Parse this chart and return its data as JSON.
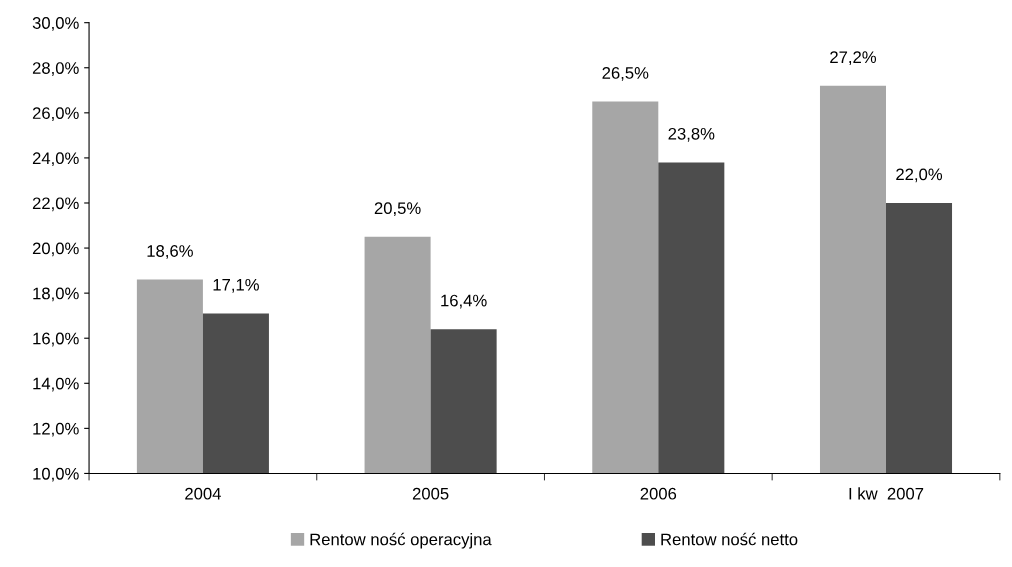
{
  "chart_data": {
    "type": "bar",
    "categories": [
      "2004",
      "2005",
      "2006",
      "I kw  2007"
    ],
    "series": [
      {
        "name": "Rentow ność operacyjna",
        "color": "#a6a6a6",
        "values": [
          18.6,
          20.5,
          26.5,
          27.2
        ],
        "value_labels": [
          "18,6%",
          "20,5%",
          "26,5%",
          "27,2%"
        ]
      },
      {
        "name": "Rentow ność netto",
        "color": "#4d4d4d",
        "values": [
          17.1,
          16.4,
          23.8,
          22.0
        ],
        "value_labels": [
          "17,1%",
          "16,4%",
          "23,8%",
          "22,0%"
        ]
      }
    ],
    "ylim": [
      10,
      30
    ],
    "yticks": [
      {
        "value": 10,
        "label": "10,0%"
      },
      {
        "value": 12,
        "label": "12,0%"
      },
      {
        "value": 14,
        "label": "14,0%"
      },
      {
        "value": 16,
        "label": "16,0%"
      },
      {
        "value": 18,
        "label": "18,0%"
      },
      {
        "value": 20,
        "label": "20,0%"
      },
      {
        "value": 22,
        "label": "22,0%"
      },
      {
        "value": 24,
        "label": "24,0%"
      },
      {
        "value": 26,
        "label": "26,0%"
      },
      {
        "value": 28,
        "label": "28,0%"
      },
      {
        "value": 30,
        "label": "30,0%"
      }
    ],
    "grid": false,
    "legend": "bottom"
  }
}
